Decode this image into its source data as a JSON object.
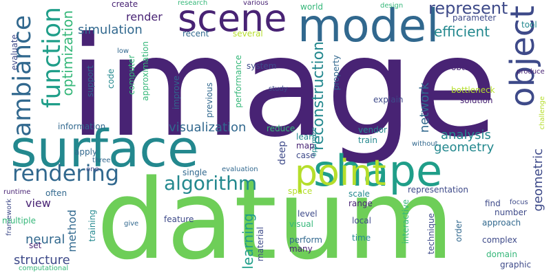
{
  "palette": {
    "purple": "#482374",
    "indigo": "#3e4a89",
    "blue": "#31688e",
    "teal": "#23888e",
    "green": "#1f9e89",
    "emerald": "#35b779",
    "lime": "#6ece58",
    "yellowgreen": "#b5de2b"
  },
  "words": [
    {
      "text": "image",
      "color": "purple"
    },
    {
      "text": "datum",
      "color": "lime"
    },
    {
      "text": "surface",
      "color": "teal"
    },
    {
      "text": "model",
      "color": "blue"
    },
    {
      "text": "shape",
      "color": "green"
    },
    {
      "text": "scene",
      "color": "purple"
    },
    {
      "text": "point",
      "color": "yellowgreen"
    },
    {
      "text": "object",
      "color": "indigo"
    },
    {
      "text": "function",
      "color": "green"
    },
    {
      "text": "ambiance",
      "color": "blue"
    },
    {
      "text": "rendering",
      "color": "blue"
    },
    {
      "text": "algorithm",
      "color": "teal"
    },
    {
      "text": "optimization",
      "color": "emerald"
    },
    {
      "text": "represent",
      "color": "indigo"
    },
    {
      "text": "efficient",
      "color": "teal"
    },
    {
      "text": "simulation",
      "color": "blue"
    },
    {
      "text": "render",
      "color": "purple"
    },
    {
      "text": "reconstruction",
      "color": "teal"
    },
    {
      "text": "visualization",
      "color": "blue"
    },
    {
      "text": "analysis",
      "color": "teal"
    },
    {
      "text": "geometry",
      "color": "teal"
    },
    {
      "text": "network",
      "color": "blue"
    },
    {
      "text": "geometric",
      "color": "indigo"
    },
    {
      "text": "learning",
      "color": "green"
    },
    {
      "text": "structure",
      "color": "indigo"
    },
    {
      "text": "neural",
      "color": "blue"
    },
    {
      "text": "method",
      "color": "blue"
    },
    {
      "text": "view",
      "color": "purple"
    },
    {
      "text": "create",
      "color": "purple"
    },
    {
      "text": "research",
      "color": "emerald"
    },
    {
      "text": "various",
      "color": "purple"
    },
    {
      "text": "world",
      "color": "emerald"
    },
    {
      "text": "design",
      "color": "emerald"
    },
    {
      "text": "parameter",
      "color": "indigo"
    },
    {
      "text": "tool",
      "color": "teal"
    },
    {
      "text": "recent",
      "color": "blue"
    },
    {
      "text": "several",
      "color": "yellowgreen"
    },
    {
      "text": "evaluate",
      "color": "indigo"
    },
    {
      "text": "low",
      "color": "blue"
    },
    {
      "text": "system",
      "color": "indigo"
    },
    {
      "text": "support",
      "color": "blue"
    },
    {
      "text": "code",
      "color": "teal"
    },
    {
      "text": "computer",
      "color": "emerald"
    },
    {
      "text": "approximation",
      "color": "emerald"
    },
    {
      "text": "improve",
      "color": "blue"
    },
    {
      "text": "previous",
      "color": "blue"
    },
    {
      "text": "performance",
      "color": "emerald"
    },
    {
      "text": "property",
      "color": "blue"
    },
    {
      "text": "obtain",
      "color": "purple"
    },
    {
      "text": "produce",
      "color": "purple"
    },
    {
      "text": "bottleneck",
      "color": "yellowgreen"
    },
    {
      "text": "solution",
      "color": "purple"
    },
    {
      "text": "explain",
      "color": "indigo"
    },
    {
      "text": "study",
      "color": "indigo"
    },
    {
      "text": "challenge",
      "color": "yellowgreen"
    },
    {
      "text": "information",
      "color": "blue"
    },
    {
      "text": "reduce",
      "color": "emerald"
    },
    {
      "text": "vendor",
      "color": "teal"
    },
    {
      "text": "train",
      "color": "teal"
    },
    {
      "text": "learn",
      "color": "teal"
    },
    {
      "text": "optimize",
      "color": "teal"
    },
    {
      "text": "without",
      "color": "blue"
    },
    {
      "text": "apply",
      "color": "blue"
    },
    {
      "text": "three",
      "color": "blue"
    },
    {
      "text": "one",
      "color": "indigo"
    },
    {
      "text": "deep",
      "color": "indigo"
    },
    {
      "text": "case",
      "color": "indigo"
    },
    {
      "text": "map",
      "color": "purple"
    },
    {
      "text": "single",
      "color": "blue"
    },
    {
      "text": "evaluation",
      "color": "blue"
    },
    {
      "text": "runtime",
      "color": "purple"
    },
    {
      "text": "framework",
      "color": "indigo"
    },
    {
      "text": "often",
      "color": "blue"
    },
    {
      "text": "space",
      "color": "yellowgreen"
    },
    {
      "text": "representation",
      "color": "indigo"
    },
    {
      "text": "scale",
      "color": "teal"
    },
    {
      "text": "range",
      "color": "purple"
    },
    {
      "text": "find",
      "color": "indigo"
    },
    {
      "text": "focus",
      "color": "indigo"
    },
    {
      "text": "multiple",
      "color": "emerald"
    },
    {
      "text": "training",
      "color": "teal"
    },
    {
      "text": "feature",
      "color": "indigo"
    },
    {
      "text": "give",
      "color": "blue"
    },
    {
      "text": "level",
      "color": "indigo"
    },
    {
      "text": "number",
      "color": "indigo"
    },
    {
      "text": "approach",
      "color": "blue"
    },
    {
      "text": "interactive",
      "color": "emerald"
    },
    {
      "text": "technique",
      "color": "indigo"
    },
    {
      "text": "order",
      "color": "blue"
    },
    {
      "text": "visual",
      "color": "emerald"
    },
    {
      "text": "local",
      "color": "indigo"
    },
    {
      "text": "set",
      "color": "purple"
    },
    {
      "text": "material",
      "color": "indigo"
    },
    {
      "text": "perform",
      "color": "blue"
    },
    {
      "text": "many",
      "color": "purple"
    },
    {
      "text": "time",
      "color": "teal"
    },
    {
      "text": "domain",
      "color": "emerald"
    },
    {
      "text": "complex",
      "color": "indigo"
    },
    {
      "text": "graphic",
      "color": "indigo"
    },
    {
      "text": "computational",
      "color": "emerald"
    }
  ]
}
